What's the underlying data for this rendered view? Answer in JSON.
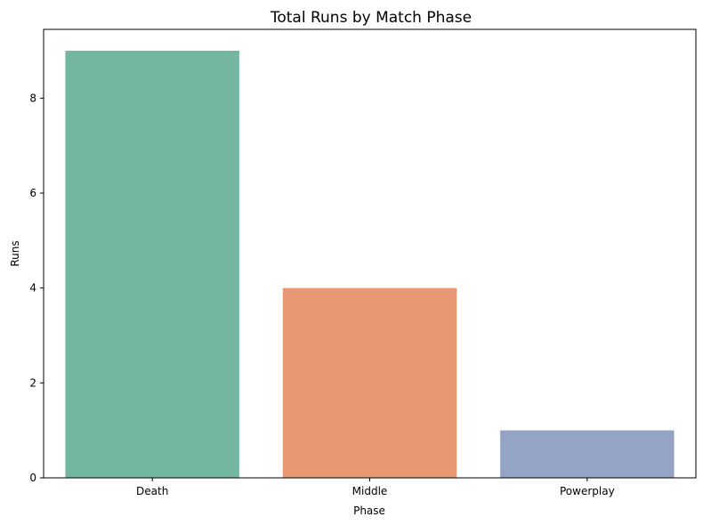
{
  "chart_data": {
    "type": "bar",
    "title": "Total Runs by Match Phase",
    "xlabel": "Phase",
    "ylabel": "Runs",
    "categories": [
      "Death",
      "Middle",
      "Powerplay"
    ],
    "values": [
      9,
      4,
      1
    ],
    "colors": [
      "#74b6a1",
      "#e99875",
      "#95a4c5"
    ],
    "ylim": [
      0,
      9.45
    ],
    "yticks": [
      0,
      2,
      4,
      6,
      8
    ],
    "grid": false,
    "legend": "none"
  }
}
